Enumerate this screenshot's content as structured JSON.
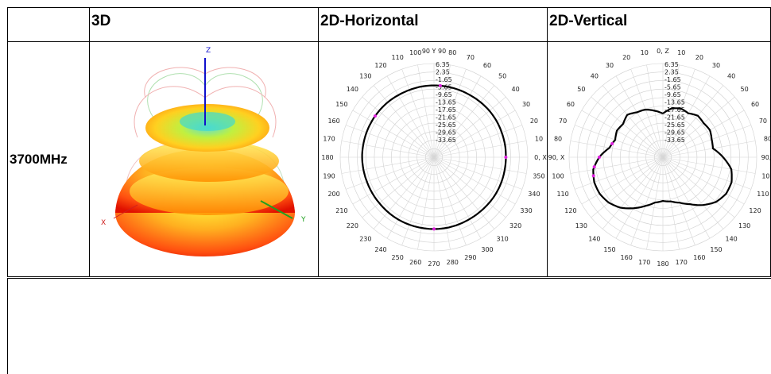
{
  "table": {
    "headers": [
      "",
      "3D",
      "2D-Horizontal",
      "2D-Vertical"
    ],
    "row_label": "3700MHz"
  },
  "view3d": {
    "axis_z": "Z",
    "axis_x": "X",
    "axis_y": "Y",
    "colors": {
      "z_axis": "#1010cc",
      "x_axis": "#d02020",
      "y_axis": "#20a020"
    }
  },
  "chart_data": [
    {
      "type": "polar",
      "name": "2D-Horizontal",
      "angle_labels": [
        "0, X",
        "10",
        "20",
        "30",
        "40",
        "50",
        "60",
        "70",
        "80",
        "90 Y 90",
        "100",
        "110",
        "120",
        "130",
        "140",
        "150",
        "160",
        "170",
        "180",
        "190",
        "200",
        "210",
        "220",
        "230",
        "240",
        "250",
        "260",
        "270",
        "280",
        "290",
        "300",
        "310",
        "320",
        "330",
        "340",
        "350"
      ],
      "radial_labels": [
        "6.35",
        "2.35",
        "-1.65",
        "-5.65",
        "-9.65",
        "-13.65",
        "-17.65",
        "-21.65",
        "-25.65",
        "-29.65",
        "-33.65"
      ],
      "r_range": [
        -33.65,
        6.35
      ],
      "series_values": [
        -3.0,
        -2.9,
        -2.9,
        -2.8,
        -2.8,
        -2.9,
        -3.0,
        -3.0,
        -3.0,
        -3.0,
        -3.0,
        -3.1,
        -3.1,
        -3.0,
        -3.0,
        -3.0,
        -3.0,
        -3.0,
        -3.0,
        -3.1,
        -3.2,
        -3.2,
        -3.2,
        -3.1,
        -3.0,
        -3.0,
        -3.0,
        -3.0,
        -3.0,
        -3.1,
        -3.2,
        -3.2,
        -3.1,
        -3.0,
        -3.0,
        -3.0
      ],
      "markers_deg": [
        0,
        85,
        145,
        270
      ]
    },
    {
      "type": "polar",
      "name": "2D-Vertical",
      "angle_labels": [
        "0, Z",
        "10",
        "20",
        "30",
        "40",
        "50",
        "60",
        "70",
        "80",
        "90, X",
        "100",
        "110",
        "120",
        "130",
        "140",
        "150",
        "160",
        "170",
        "180",
        "170",
        "160",
        "150",
        "140",
        "130",
        "120",
        "110",
        "100",
        "90, X",
        "80",
        "70",
        "60",
        "50",
        "40",
        "30",
        "20",
        "10"
      ],
      "radial_labels": [
        "6.35",
        "2.35",
        "-1.65",
        "-5.65",
        "-9.65",
        "-13.65",
        "-17.65",
        "-21.65",
        "-25.65",
        "-29.65",
        "-33.65"
      ],
      "r_range": [
        -33.65,
        6.35
      ],
      "series_values": [
        -15.0,
        -12.5,
        -11.5,
        -12.0,
        -10.5,
        -11.0,
        -10.5,
        -11.5,
        -12.0,
        -8.0,
        -4.0,
        -2.5,
        -2.5,
        -4.0,
        -7.0,
        -10.5,
        -13.0,
        -14.5,
        -15.0,
        -14.0,
        -11.5,
        -8.5,
        -5.5,
        -3.5,
        -2.5,
        -2.5,
        -3.5,
        -6.5,
        -10.5,
        -12.0,
        -11.0,
        -11.5,
        -10.0,
        -11.5,
        -12.0,
        -13.5
      ],
      "markers_deg": [
        255,
        262,
        270,
        285
      ]
    }
  ]
}
